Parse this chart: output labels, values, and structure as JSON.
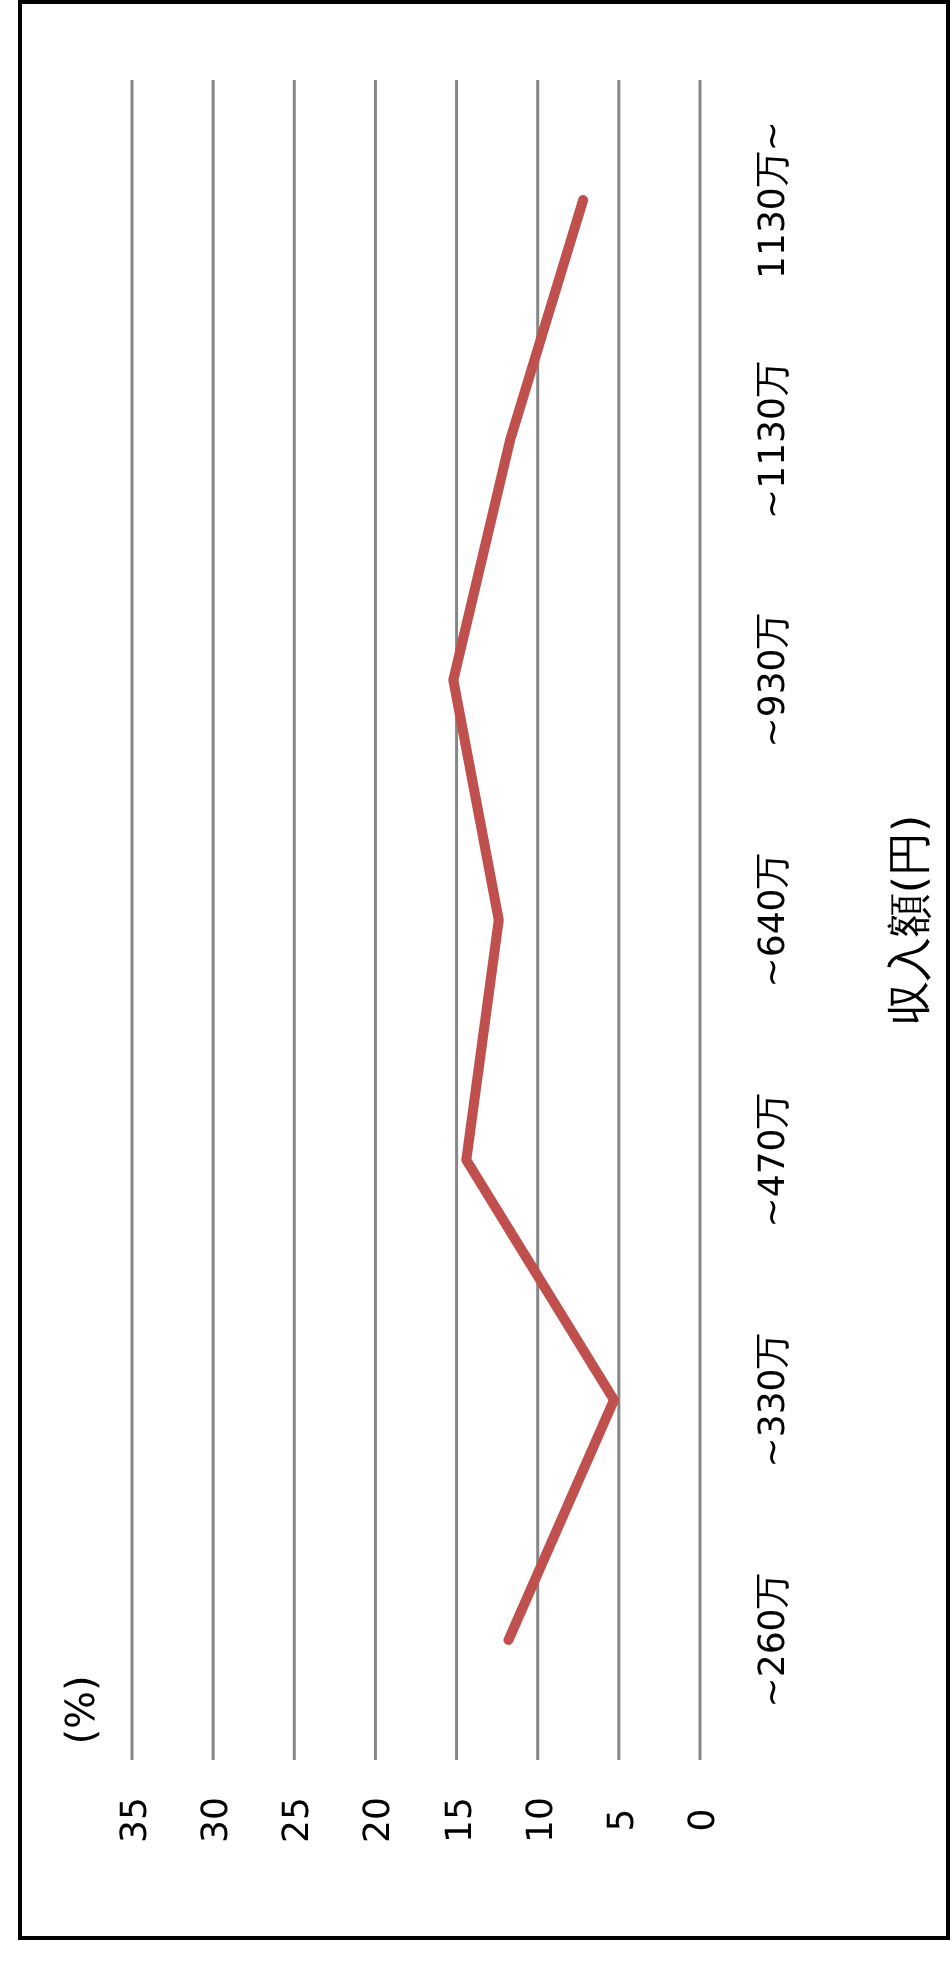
{
  "chart_data": {
    "type": "line",
    "orientation": "horizontal",
    "ylabel": "収入額(円)",
    "annotations": [
      "(%)"
    ],
    "categories": [
      "1130万~",
      "~1130万",
      "~930万",
      "~640万",
      "~470万",
      "~330万",
      "~260万"
    ],
    "series": [
      {
        "color": "#c0504d",
        "values": [
          7.2,
          11.7,
          15.2,
          12.4,
          14.4,
          5.3,
          11.8
        ]
      }
    ],
    "xlim": [
      35,
      0
    ],
    "xticks": [
      35,
      30,
      25,
      20,
      15,
      10,
      5,
      0
    ],
    "grid": "x",
    "marker": "none"
  }
}
